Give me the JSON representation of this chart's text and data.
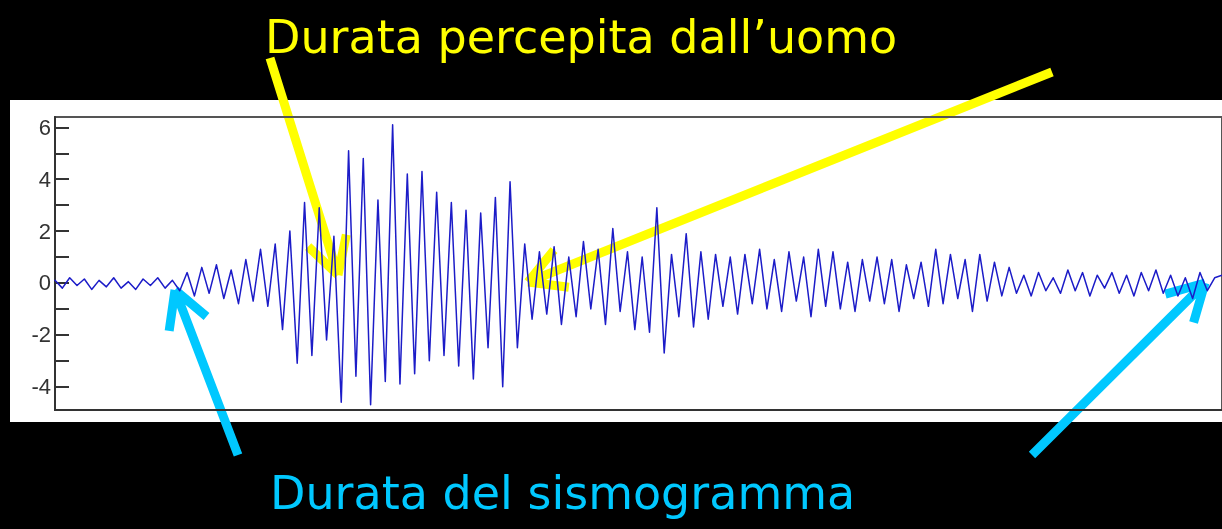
{
  "chart_data": {
    "type": "line",
    "annotations": [
      "Durata percepita dall’uomo",
      "Durata del sismogramma"
    ],
    "categories": [
      null,
      null,
      null,
      null,
      null,
      null,
      null,
      null,
      null,
      null,
      null,
      null,
      null,
      null,
      null,
      null,
      null,
      null,
      null,
      null,
      null,
      null,
      null,
      null,
      null,
      null,
      null,
      null,
      null,
      null,
      null,
      null,
      null,
      null,
      null,
      null,
      null,
      null,
      null,
      null,
      null,
      null,
      null,
      null,
      null,
      null,
      null,
      null,
      null,
      null,
      null,
      null,
      null,
      null,
      null,
      null,
      null,
      null,
      null,
      null,
      null,
      null,
      null,
      null,
      null,
      null,
      null,
      null,
      null,
      null,
      null,
      null,
      null,
      null,
      null,
      null,
      null,
      null,
      null,
      null,
      null,
      null,
      null,
      null,
      null,
      null,
      null,
      null,
      null,
      null,
      null,
      null,
      null,
      null,
      null,
      null,
      null,
      null,
      null,
      null,
      null,
      null,
      null,
      null,
      null,
      null,
      null,
      null,
      null,
      null,
      null,
      null,
      null,
      null,
      null,
      null,
      null,
      null,
      null,
      null,
      null,
      null,
      null,
      null,
      null,
      null,
      null,
      null,
      null,
      null,
      null,
      null,
      null,
      null,
      null,
      null,
      null,
      null,
      null,
      null,
      null,
      null,
      null,
      null,
      null,
      null,
      null,
      null,
      null,
      null,
      null,
      null,
      null,
      null,
      null,
      null,
      null,
      null,
      null,
      null
    ],
    "series": [
      {
        "color": "#1c1cc8",
        "values": [
          0.1,
          -0.2,
          0.2,
          -0.1,
          0.15,
          -0.25,
          0.1,
          -0.15,
          0.2,
          -0.2,
          0.05,
          -0.25,
          0.15,
          -0.1,
          0.2,
          -0.2,
          0.1,
          -0.3,
          0.4,
          -0.5,
          0.6,
          -0.4,
          0.7,
          -0.6,
          0.5,
          -0.8,
          0.9,
          -0.7,
          1.3,
          -0.9,
          1.5,
          -1.8,
          2.0,
          -3.1,
          3.1,
          -2.8,
          2.9,
          -2.2,
          1.8,
          -4.6,
          5.1,
          -3.6,
          4.8,
          -4.7,
          3.2,
          -3.8,
          6.1,
          -3.9,
          4.2,
          -3.5,
          4.3,
          -3.0,
          3.5,
          -2.8,
          3.1,
          -3.2,
          2.8,
          -3.7,
          2.7,
          -2.5,
          3.3,
          -4.0,
          3.9,
          -2.5,
          1.5,
          -1.4,
          1.2,
          -1.2,
          1.4,
          -1.6,
          1.0,
          -1.3,
          1.6,
          -1.0,
          1.3,
          -1.6,
          2.1,
          -1.1,
          1.2,
          -1.8,
          1.0,
          -1.9,
          2.9,
          -2.7,
          1.1,
          -1.3,
          1.9,
          -1.7,
          1.2,
          -1.4,
          1.1,
          -0.9,
          1.0,
          -1.2,
          1.1,
          -0.8,
          1.3,
          -1.0,
          0.9,
          -1.1,
          1.2,
          -0.7,
          1.0,
          -1.3,
          1.3,
          -0.9,
          1.2,
          -1.0,
          0.8,
          -1.1,
          0.9,
          -0.7,
          1.0,
          -0.8,
          0.9,
          -1.1,
          0.7,
          -0.6,
          0.8,
          -0.9,
          1.3,
          -0.8,
          1.1,
          -0.6,
          0.9,
          -1.1,
          1.1,
          -0.7,
          0.8,
          -0.5,
          0.6,
          -0.4,
          0.3,
          -0.5,
          0.4,
          -0.3,
          0.2,
          -0.4,
          0.5,
          -0.3,
          0.4,
          -0.5,
          0.3,
          -0.2,
          0.4,
          -0.4,
          0.3,
          -0.5,
          0.4,
          -0.3,
          0.5,
          -0.4,
          0.3,
          -0.5,
          0.2,
          -0.6,
          0.4,
          -0.3,
          0.2,
          0.3
        ]
      }
    ],
    "ylim": [
      -4.9,
      6.4
    ],
    "yticks": [
      -4,
      {
        "value": -3,
        "label": null
      },
      -2,
      {
        "value": -1,
        "label": null
      },
      0,
      {
        "value": 1,
        "label": null
      },
      2,
      {
        "value": 3,
        "label": null
      },
      4,
      {
        "value": 5,
        "label": null
      },
      6
    ],
    "tick_labels": "y",
    "grid": false,
    "line_style": "solid"
  }
}
